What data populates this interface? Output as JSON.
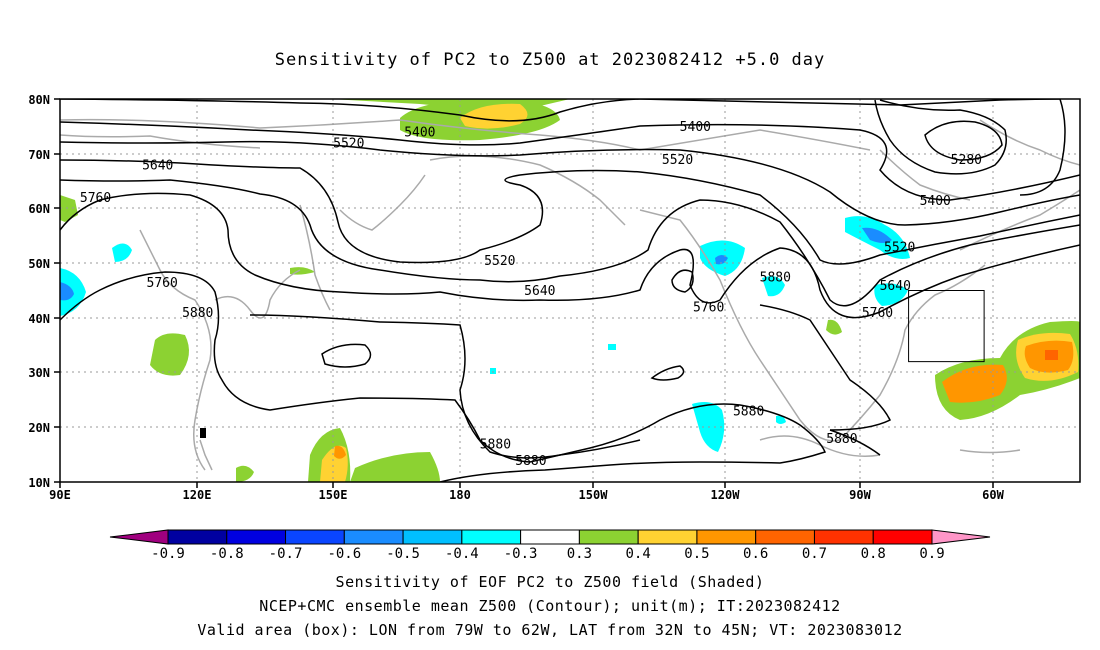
{
  "title": "Sensitivity of PC2 to Z500 at 2023082412 +5.0 day",
  "lat_labels": [
    "80N",
    "70N",
    "60N",
    "50N",
    "40N",
    "30N",
    "20N",
    "10N"
  ],
  "lon_labels": [
    "90E",
    "120E",
    "150E",
    "180",
    "150W",
    "120W",
    "90W",
    "60W"
  ],
  "contour_labels": [
    {
      "text": "5400",
      "lon": 171,
      "lat": 73.5
    },
    {
      "text": "5400",
      "lon": -127,
      "lat": 74.5
    },
    {
      "text": "5520",
      "lon": 155,
      "lat": 71.5
    },
    {
      "text": "5520",
      "lon": -131,
      "lat": 68.5
    },
    {
      "text": "5640",
      "lon": 112,
      "lat": 67.5
    },
    {
      "text": "5760",
      "lon": 98,
      "lat": 61.5
    },
    {
      "text": "5280",
      "lon": -66,
      "lat": 68.5
    },
    {
      "text": "5400",
      "lon": -73,
      "lat": 61.0
    },
    {
      "text": "5520",
      "lon": -81,
      "lat": 52.5
    },
    {
      "text": "5520",
      "lon": -171,
      "lat": 50.0
    },
    {
      "text": "5640",
      "lon": -82,
      "lat": 45.5
    },
    {
      "text": "5640",
      "lon": -162,
      "lat": 44.5
    },
    {
      "text": "5760",
      "lon": -124,
      "lat": 41.5
    },
    {
      "text": "5760",
      "lon": -86,
      "lat": 40.5
    },
    {
      "text": "5760",
      "lon": 113,
      "lat": 46.0
    },
    {
      "text": "5880",
      "lon": -109,
      "lat": 47.0
    },
    {
      "text": "5880",
      "lon": 121,
      "lat": 40.5
    },
    {
      "text": "5880",
      "lon": -115,
      "lat": 22.5
    },
    {
      "text": "5880",
      "lon": -94,
      "lat": 17.5
    },
    {
      "text": "5880",
      "lon": -172,
      "lat": 16.5
    },
    {
      "text": "5880",
      "lon": -164,
      "lat": 13.5
    }
  ],
  "valid_box": {
    "lon_min": -79,
    "lon_max": -62,
    "lat_min": 32,
    "lat_max": 45
  },
  "colorbar": {
    "labels": [
      "-0.9",
      "-0.8",
      "-0.7",
      "-0.6",
      "-0.5",
      "-0.4",
      "-0.3",
      "0.3",
      "0.4",
      "0.5",
      "0.6",
      "0.7",
      "0.8",
      "0.9"
    ],
    "colors": [
      "#a0007f",
      "#0000a0",
      "#0000e0",
      "#0a45ff",
      "#1a8cff",
      "#00bfff",
      "#00ffff",
      "#ffffff",
      "#8cd232",
      "#ffd232",
      "#ff9600",
      "#ff6400",
      "#ff3200",
      "#ff0000",
      "#ff96c8"
    ]
  },
  "captions": [
    "Sensitivity of EOF PC2 to Z500 field (Shaded)",
    "NCEP+CMC ensemble mean Z500 (Contour); unit(m); IT:2023082412",
    "Valid area (box): LON from 79W to 62W, LAT from 32N to 45N; VT: 2023083012"
  ]
}
